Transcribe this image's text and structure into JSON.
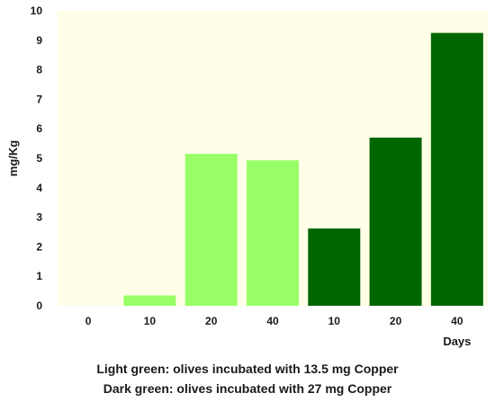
{
  "chart_data": {
    "type": "bar",
    "categories": [
      "0",
      "10",
      "20",
      "40",
      "10",
      "20",
      "40"
    ],
    "values": [
      0,
      0.35,
      5.15,
      4.93,
      2.62,
      5.7,
      9.25
    ],
    "group": [
      "light",
      "light",
      "light",
      "light",
      "dark",
      "dark",
      "dark"
    ],
    "ylabel": "mg/Kg",
    "xlabel": "Days",
    "ylim": [
      0,
      10
    ],
    "yticks": [
      "0",
      "1",
      "2",
      "3",
      "4",
      "5",
      "6",
      "7",
      "8",
      "9",
      "10"
    ],
    "grid": false,
    "colors": {
      "plot_background": "#ffffe8",
      "light": "#99ff66",
      "dark": "#006600"
    },
    "legend": {
      "light": "Light green: olives incubated with 13.5 mg Copper",
      "dark": "Dark green: olives incubated with 27 mg Copper"
    }
  }
}
